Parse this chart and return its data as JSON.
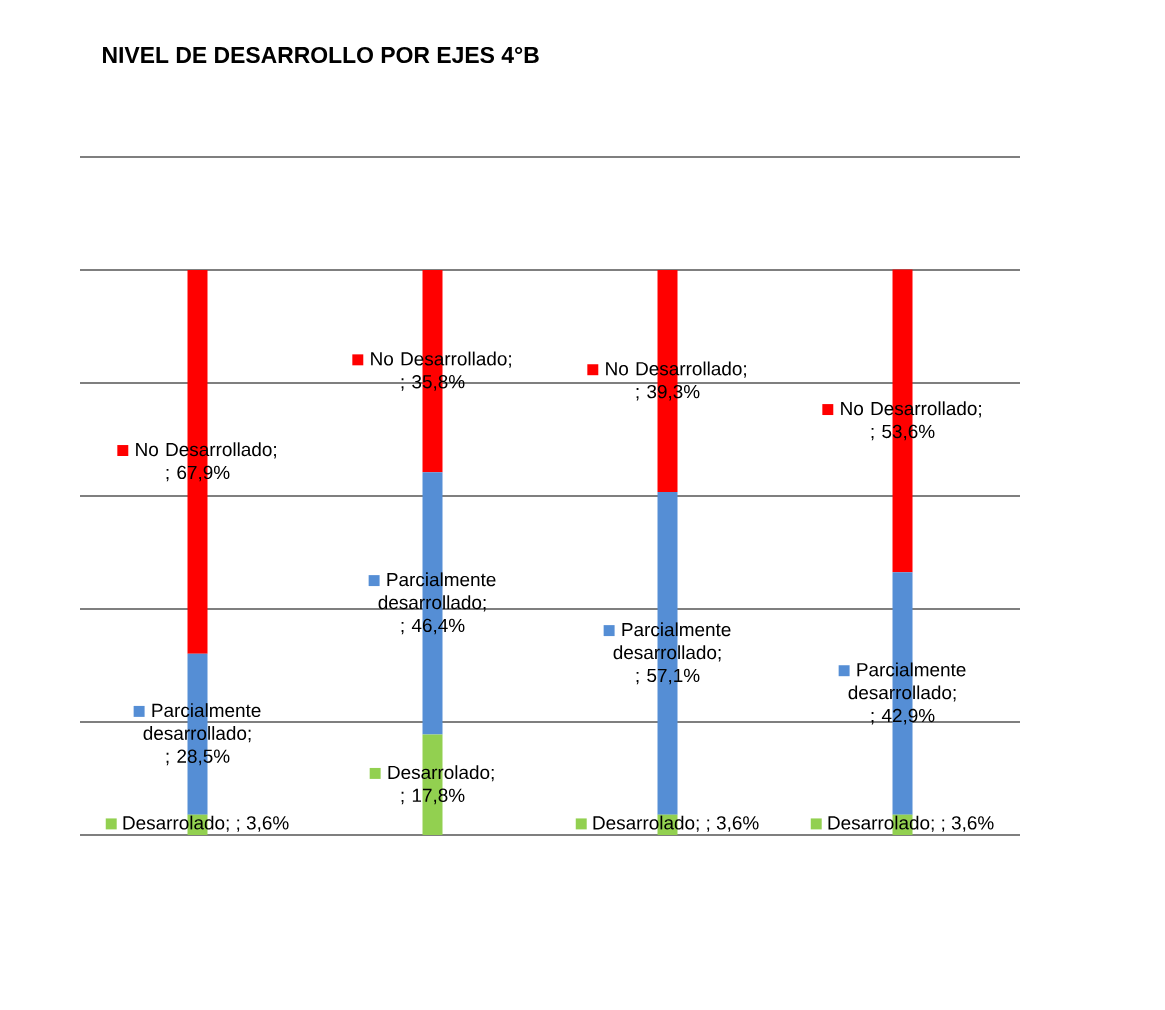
{
  "chart_data": {
    "type": "bar",
    "title": "NIVEL DE DESARROLLO POR EJES    4°B",
    "categories": [
      null,
      null,
      null,
      null
    ],
    "stacked": true,
    "grid": "y",
    "ylim": [
      0,
      120
    ],
    "yticks": [
      {
        "value": 0,
        "label": null
      },
      {
        "value": 20,
        "label": null
      },
      {
        "value": 40,
        "label": null
      },
      {
        "value": 60,
        "label": null
      },
      {
        "value": 80,
        "label": null
      },
      {
        "value": 100,
        "label": null
      },
      {
        "value": 120,
        "label": null
      }
    ],
    "series": [
      {
        "color": "#92d050",
        "values": [
          3.6,
          17.8,
          3.6,
          3.6
        ],
        "value_labels": [
          "Desarrolado; ; 3,6%",
          "Desarrolado; ; 17,8%",
          "Desarrolado; ; 3,6%",
          "Desarrolado; ; 3,6%"
        ]
      },
      {
        "color": "#558ed5",
        "values": [
          28.5,
          46.4,
          57.1,
          42.9
        ],
        "value_labels": [
          "Parcialmente desarrollado; ; 28,5%",
          "Parcialmente desarrollado; ; 46,4%",
          "Parcialmente desarrollado; ; 57,1%",
          "Parcialmente desarrollado; ; 42,9%"
        ]
      },
      {
        "color": "#ff0000",
        "values": [
          67.9,
          35.8,
          39.3,
          53.6
        ],
        "value_labels": [
          "No Desarrollado; ; 67,9%",
          "No Desarrollado; ; 35,8%",
          "No Desarrollado; ; 39,3%",
          "No Desarrollado; ; 53,6%"
        ]
      }
    ]
  }
}
